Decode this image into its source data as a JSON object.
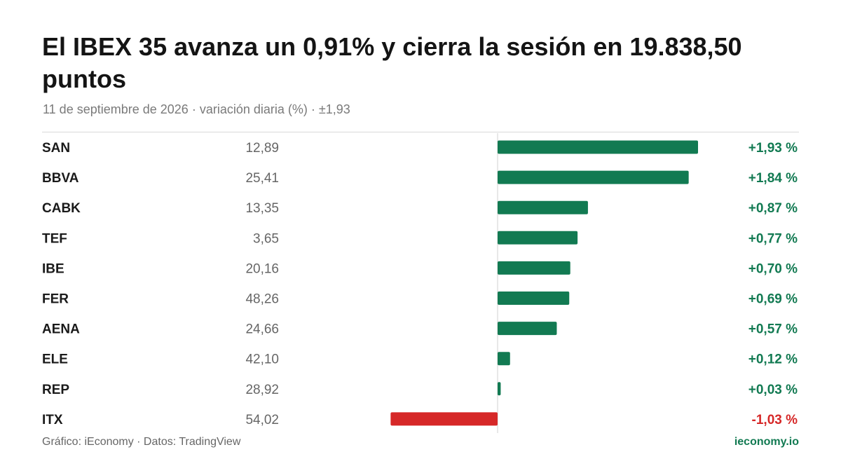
{
  "header": {
    "title": "El IBEX 35 avanza un 0,91% y cierra la sesión en 19.838,50 puntos",
    "subtitle": "11 de septiembre de 2026 · variación diaria (%) · ±1,93"
  },
  "footer": {
    "source": "Gráfico: iEconomy · Datos: TradingView",
    "brand": "ieconomy.io"
  },
  "colors": {
    "positive": "#127a52",
    "negative": "#d62828",
    "ticker": "#1a1a1a",
    "price": "#666666"
  },
  "chart_data": {
    "type": "bar",
    "orientation": "horizontal",
    "categories": [
      "SAN",
      "BBVA",
      "CABK",
      "TEF",
      "IBE",
      "FER",
      "AENA",
      "ELE",
      "REP",
      "ITX"
    ],
    "prices": [
      "12,89",
      "25,41",
      "13,35",
      "3,65",
      "20,16",
      "48,26",
      "24,66",
      "42,10",
      "28,92",
      "54,02"
    ],
    "values": [
      1.93,
      1.84,
      0.87,
      0.77,
      0.7,
      0.69,
      0.57,
      0.12,
      0.03,
      -1.03
    ],
    "value_labels": [
      "+1,93 %",
      "+1,84 %",
      "+0,87 %",
      "+0,77 %",
      "+0,70 %",
      "+0,69 %",
      "+0,57 %",
      "+0,12 %",
      "+0,03 %",
      "-1,03 %"
    ],
    "xlim": [
      -1.93,
      1.93
    ],
    "title": "El IBEX 35 avanza un 0,91% y cierra la sesión en 19.838,50 puntos",
    "subtitle": "11 de septiembre de 2026 · variación diaria (%) · ±1,93"
  }
}
